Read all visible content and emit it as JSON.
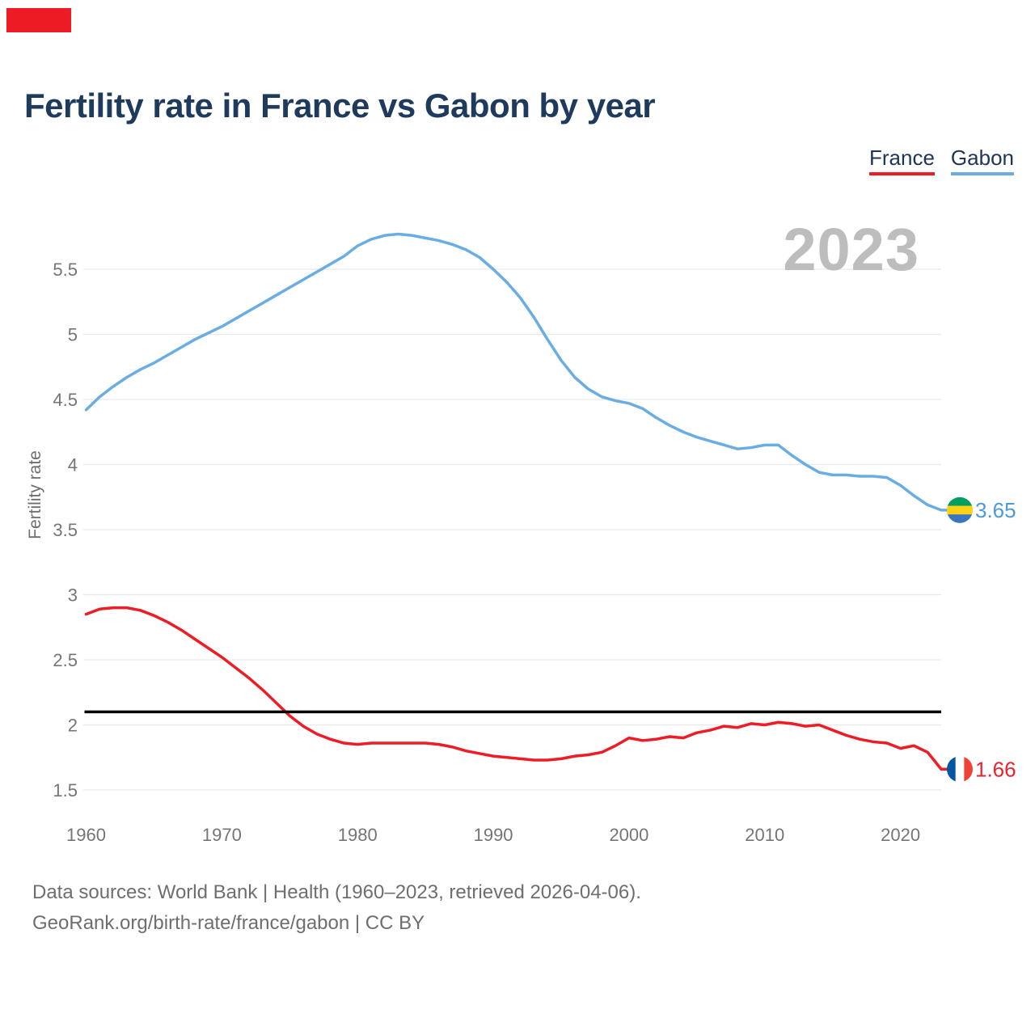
{
  "page": {
    "accent_bar_color": "#ed1c24"
  },
  "header": {
    "title": "Fertility rate in France vs Gabon by year"
  },
  "legend": {
    "items": [
      {
        "label": "France",
        "color": "#ee1c25"
      },
      {
        "label": "Gabon",
        "color": "#6aade2"
      }
    ]
  },
  "chart": {
    "watermark": "2023",
    "y_axis_label": "Fertility rate",
    "grid_color": "#e9e9e9",
    "axis_text_color": "#757575"
  },
  "chart_data": {
    "type": "line",
    "title": "Fertility rate in France vs Gabon by year",
    "xlabel": "",
    "ylabel": "Fertility rate",
    "xlim": [
      1960,
      2023
    ],
    "ylim": [
      1.3,
      5.95
    ],
    "x_ticks": [
      1960,
      1970,
      1980,
      1990,
      2000,
      2010,
      2020
    ],
    "y_ticks": [
      1.5,
      2,
      2.5,
      3,
      3.5,
      4,
      4.5,
      5,
      5.5
    ],
    "grid": true,
    "legend_position": "top-right",
    "reference_line": {
      "value": 2.1,
      "color": "#000000"
    },
    "years": [
      1960,
      1961,
      1962,
      1963,
      1964,
      1965,
      1966,
      1967,
      1968,
      1969,
      1970,
      1971,
      1972,
      1973,
      1974,
      1975,
      1976,
      1977,
      1978,
      1979,
      1980,
      1981,
      1982,
      1983,
      1984,
      1985,
      1986,
      1987,
      1988,
      1989,
      1990,
      1991,
      1992,
      1993,
      1994,
      1995,
      1996,
      1997,
      1998,
      1999,
      2000,
      2001,
      2002,
      2003,
      2004,
      2005,
      2006,
      2007,
      2008,
      2009,
      2010,
      2011,
      2012,
      2013,
      2014,
      2015,
      2016,
      2017,
      2018,
      2019,
      2020,
      2021,
      2022,
      2023
    ],
    "series": [
      {
        "name": "Gabon",
        "color": "#6aade2",
        "end_label": "3.65",
        "end_label_color": "#4e9ad6",
        "flag": {
          "orientation": "horizontal",
          "colors": [
            "#009e60",
            "#fcd116",
            "#3a75c4"
          ]
        },
        "values": [
          4.42,
          4.52,
          4.6,
          4.67,
          4.73,
          4.78,
          4.84,
          4.9,
          4.96,
          5.01,
          5.06,
          5.12,
          5.18,
          5.24,
          5.3,
          5.36,
          5.42,
          5.48,
          5.54,
          5.6,
          5.68,
          5.73,
          5.76,
          5.77,
          5.76,
          5.74,
          5.72,
          5.69,
          5.65,
          5.59,
          5.5,
          5.4,
          5.28,
          5.13,
          4.96,
          4.8,
          4.67,
          4.58,
          4.52,
          4.49,
          4.47,
          4.43,
          4.36,
          4.3,
          4.25,
          4.21,
          4.18,
          4.15,
          4.12,
          4.13,
          4.15,
          4.15,
          4.07,
          4.0,
          3.94,
          3.92,
          3.92,
          3.91,
          3.91,
          3.9,
          3.84,
          3.76,
          3.69,
          3.65
        ]
      },
      {
        "name": "France",
        "color": "#ee1c25",
        "end_label": "1.66",
        "end_label_color": "#e8232e",
        "flag": {
          "orientation": "vertical",
          "colors": [
            "#0055a4",
            "#ffffff",
            "#ef4135"
          ]
        },
        "values": [
          2.85,
          2.89,
          2.9,
          2.9,
          2.88,
          2.84,
          2.79,
          2.73,
          2.66,
          2.59,
          2.52,
          2.44,
          2.36,
          2.27,
          2.17,
          2.07,
          1.99,
          1.93,
          1.89,
          1.86,
          1.85,
          1.86,
          1.86,
          1.86,
          1.86,
          1.86,
          1.85,
          1.83,
          1.8,
          1.78,
          1.76,
          1.75,
          1.74,
          1.73,
          1.73,
          1.74,
          1.76,
          1.77,
          1.79,
          1.84,
          1.9,
          1.88,
          1.89,
          1.91,
          1.9,
          1.94,
          1.96,
          1.99,
          1.98,
          2.01,
          2.0,
          2.02,
          2.01,
          1.99,
          2.0,
          1.96,
          1.92,
          1.89,
          1.87,
          1.86,
          1.82,
          1.84,
          1.79,
          1.66
        ]
      }
    ]
  },
  "footer": {
    "line1": "Data sources: World Bank | Health (1960–2023, retrieved 2026-04-06).",
    "line2": "GeoRank.org/birth-rate/france/gabon | CC BY"
  }
}
